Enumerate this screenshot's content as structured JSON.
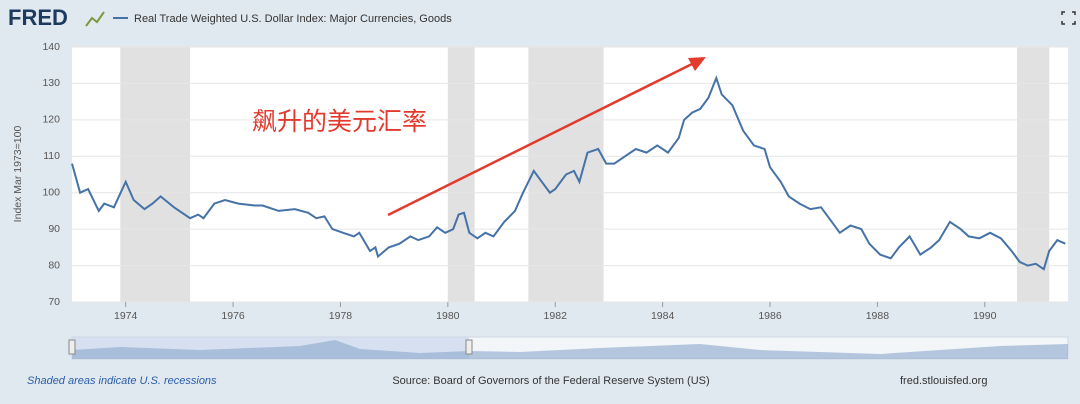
{
  "logo": "FRED",
  "footer": {
    "recession_note": "Shaded areas indicate U.S. recessions",
    "source": "Source: Board of Governors of the Federal Reserve System (US)",
    "site": "fred.stlouisfed.org"
  },
  "chart_data": {
    "type": "line",
    "ylabel": "Index Mar 1973=100",
    "annotation": "飙升的美元汇率",
    "xlim": [
      1973,
      1991.55
    ],
    "ylim": [
      70,
      140
    ],
    "xticks": [
      1974,
      1976,
      1978,
      1980,
      1982,
      1984,
      1986,
      1988,
      1990
    ],
    "yticks": [
      70,
      80,
      90,
      100,
      110,
      120,
      130,
      140
    ],
    "grid": true,
    "recessions": [
      [
        1973.9,
        1975.2
      ],
      [
        1980.0,
        1980.5
      ],
      [
        1981.5,
        1982.9
      ],
      [
        1990.6,
        1991.2
      ]
    ],
    "series": [
      {
        "name": "Real Trade Weighted U.S. Dollar Index: Major Currencies, Goods",
        "color": "#4572a7",
        "x": [
          1973.0,
          1973.15,
          1973.3,
          1973.5,
          1973.6,
          1973.78,
          1974.0,
          1974.15,
          1974.35,
          1974.5,
          1974.65,
          1974.9,
          1975.2,
          1975.35,
          1975.45,
          1975.65,
          1975.85,
          1976.1,
          1976.4,
          1976.55,
          1976.85,
          1977.15,
          1977.4,
          1977.55,
          1977.7,
          1977.85,
          1978.05,
          1978.25,
          1978.35,
          1978.55,
          1978.65,
          1978.7,
          1978.9,
          1979.1,
          1979.3,
          1979.45,
          1979.65,
          1979.8,
          1979.95,
          1980.1,
          1980.2,
          1980.3,
          1980.4,
          1980.55,
          1980.7,
          1980.85,
          1981.05,
          1981.25,
          1981.4,
          1981.6,
          1981.75,
          1981.9,
          1982.0,
          1982.2,
          1982.35,
          1982.45,
          1982.6,
          1982.8,
          1982.95,
          1983.1,
          1983.3,
          1983.5,
          1983.7,
          1983.9,
          1984.1,
          1984.3,
          1984.4,
          1984.55,
          1984.7,
          1984.85,
          1985.0,
          1985.1,
          1985.3,
          1985.5,
          1985.7,
          1985.9,
          1986.0,
          1986.2,
          1986.35,
          1986.55,
          1986.75,
          1986.95,
          1987.1,
          1987.3,
          1987.5,
          1987.7,
          1987.85,
          1988.05,
          1988.25,
          1988.4,
          1988.6,
          1988.8,
          1989.0,
          1989.15,
          1989.35,
          1989.55,
          1989.7,
          1989.9,
          1990.1,
          1990.3,
          1990.5,
          1990.65,
          1990.8,
          1990.95,
          1991.1,
          1991.2,
          1991.35,
          1991.5
        ],
        "values": [
          108,
          100,
          101,
          95,
          97,
          96,
          103,
          98,
          95.5,
          97,
          99,
          96,
          93,
          94,
          93,
          97,
          98,
          97,
          96.5,
          96.5,
          95,
          95.5,
          94.5,
          93,
          93.5,
          90,
          89,
          88,
          89,
          84,
          85,
          82.5,
          85,
          86,
          88,
          87,
          88,
          90.5,
          89,
          90,
          94,
          94.5,
          89,
          87.5,
          89,
          88,
          92,
          95,
          100,
          106,
          103,
          100,
          101,
          105,
          106,
          103,
          111,
          112,
          108,
          108,
          110,
          112,
          111,
          113,
          111,
          115,
          120,
          122,
          123,
          126,
          131.5,
          127,
          124,
          117,
          113,
          112,
          107,
          103,
          99,
          97,
          95.5,
          96,
          93,
          89,
          91,
          90,
          86,
          83,
          82,
          85,
          88,
          83,
          85,
          87,
          92,
          90,
          88,
          87.5,
          89,
          87.5,
          84,
          81,
          80,
          80.5,
          79,
          84,
          87,
          86
        ]
      }
    ]
  }
}
